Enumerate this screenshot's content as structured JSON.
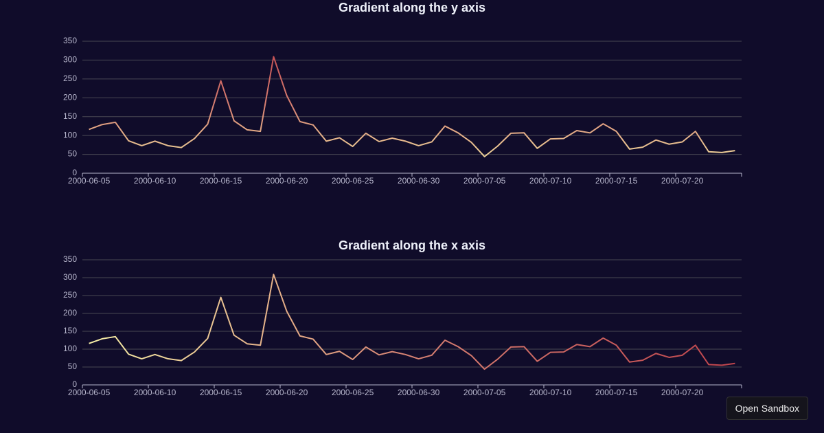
{
  "chart_data": [
    {
      "type": "line",
      "title": "Gradient along the y axis",
      "categories": [
        "2000-06-05",
        null,
        null,
        null,
        null,
        "2000-06-10",
        null,
        null,
        null,
        null,
        "2000-06-15",
        null,
        null,
        null,
        null,
        "2000-06-20",
        null,
        null,
        null,
        null,
        "2000-06-25",
        null,
        null,
        null,
        null,
        "2000-06-30",
        null,
        null,
        null,
        null,
        "2000-07-05",
        null,
        null,
        null,
        null,
        "2000-07-10",
        null,
        null,
        null,
        null,
        "2000-07-15",
        null,
        null,
        null,
        null,
        "2000-07-20",
        null,
        null,
        null,
        null
      ],
      "values": [
        116,
        129,
        135,
        86,
        73,
        85,
        73,
        68,
        92,
        130,
        245,
        139,
        115,
        111,
        309,
        206,
        137,
        128,
        85,
        94,
        71,
        106,
        84,
        93,
        85,
        73,
        83,
        125,
        107,
        82,
        44,
        72,
        106,
        107,
        66,
        91,
        92,
        113,
        107,
        131,
        111,
        64,
        69,
        88,
        77,
        83,
        111,
        57,
        55,
        60
      ],
      "ylim": [
        0,
        350
      ],
      "yticks": [
        0,
        50,
        100,
        150,
        200,
        250,
        300,
        350
      ],
      "grid": true,
      "gradient": {
        "axis": "y",
        "colors": [
          "#f6efa6",
          "#d88273",
          "#bf444c"
        ]
      }
    },
    {
      "type": "line",
      "title": "Gradient along the x axis",
      "categories": [
        "2000-06-05",
        null,
        null,
        null,
        null,
        "2000-06-10",
        null,
        null,
        null,
        null,
        "2000-06-15",
        null,
        null,
        null,
        null,
        "2000-06-20",
        null,
        null,
        null,
        null,
        "2000-06-25",
        null,
        null,
        null,
        null,
        "2000-06-30",
        null,
        null,
        null,
        null,
        "2000-07-05",
        null,
        null,
        null,
        null,
        "2000-07-10",
        null,
        null,
        null,
        null,
        "2000-07-15",
        null,
        null,
        null,
        null,
        "2000-07-20",
        null,
        null,
        null,
        null
      ],
      "values": [
        116,
        129,
        135,
        86,
        73,
        85,
        73,
        68,
        92,
        130,
        245,
        139,
        115,
        111,
        309,
        206,
        137,
        128,
        85,
        94,
        71,
        106,
        84,
        93,
        85,
        73,
        83,
        125,
        107,
        82,
        44,
        72,
        106,
        107,
        66,
        91,
        92,
        113,
        107,
        131,
        111,
        64,
        69,
        88,
        77,
        83,
        111,
        57,
        55,
        60
      ],
      "ylim": [
        0,
        350
      ],
      "yticks": [
        0,
        50,
        100,
        150,
        200,
        250,
        300,
        350
      ],
      "grid": true,
      "gradient": {
        "axis": "x",
        "colors": [
          "#f6efa6",
          "#d88273",
          "#bf444c"
        ]
      }
    }
  ],
  "button": "Open Sandbox"
}
